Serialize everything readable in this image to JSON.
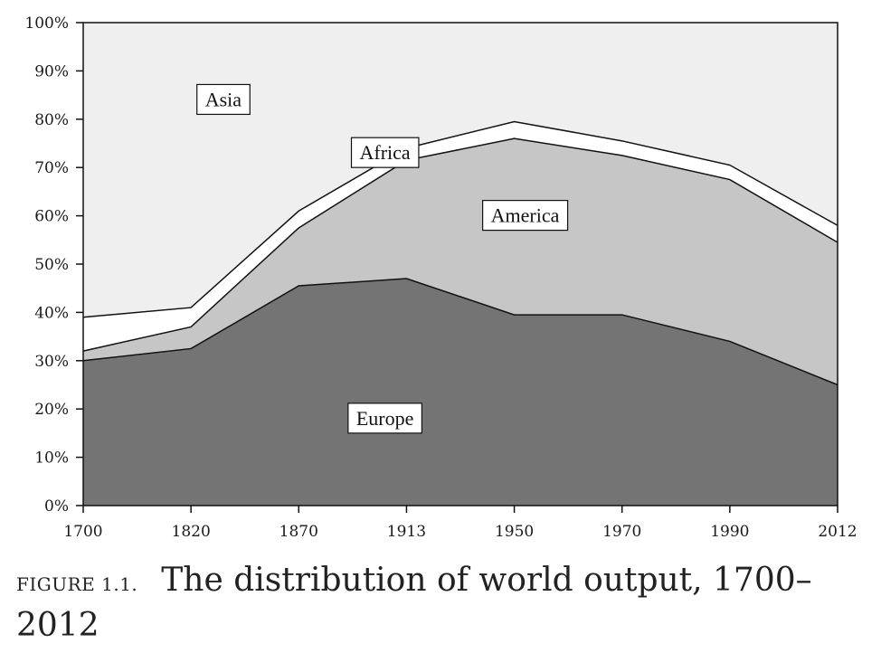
{
  "chart_data": {
    "type": "area",
    "stacked": true,
    "normalized": true,
    "x": [
      "1700",
      "1820",
      "1870",
      "1913",
      "1950",
      "1970",
      "1990",
      "2012"
    ],
    "series": [
      {
        "name": "Europe",
        "color": "#747474",
        "values": [
          30.0,
          32.5,
          45.5,
          47.0,
          39.5,
          39.5,
          34.0,
          25.0
        ]
      },
      {
        "name": "America",
        "color": "#c6c6c6",
        "values": [
          2.0,
          4.5,
          12.0,
          24.5,
          36.5,
          33.0,
          33.5,
          29.5
        ]
      },
      {
        "name": "Africa",
        "color": "#ffffff",
        "values": [
          7.0,
          4.0,
          3.5,
          2.5,
          3.5,
          3.0,
          3.0,
          3.5
        ]
      },
      {
        "name": "Asia",
        "color": "#efefef",
        "values": [
          61.0,
          59.0,
          39.0,
          26.0,
          20.5,
          24.5,
          29.5,
          42.0
        ]
      }
    ],
    "yticks": [
      "0%",
      "10%",
      "20%",
      "30%",
      "40%",
      "50%",
      "60%",
      "70%",
      "80%",
      "90%",
      "100%"
    ],
    "ylim": [
      0,
      100
    ],
    "grid": false
  },
  "caption": {
    "figure_label": "FIGURE 1.1.",
    "text": "The distribution of world output, 1700–2012"
  }
}
